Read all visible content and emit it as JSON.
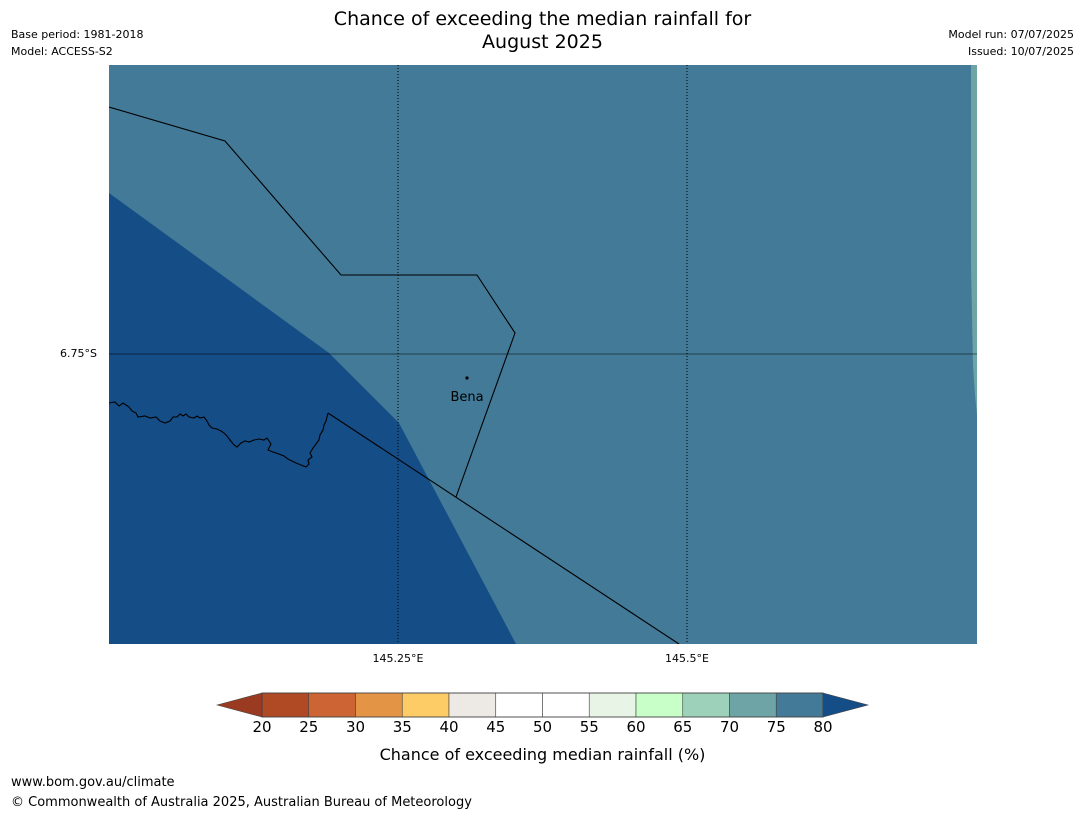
{
  "title": {
    "line1": "Chance of exceeding the median rainfall for",
    "line2": "August 2025"
  },
  "meta": {
    "base_period": "Base period: 1981-2018",
    "model": "Model: ACCESS-S2",
    "model_run": "Model run: 07/07/2025",
    "issued": "Issued: 10/07/2025"
  },
  "map": {
    "place_label": "Bena",
    "latitude_label": "6.75°S",
    "longitude_labels": [
      "145.25°E",
      "145.5°E"
    ],
    "colors": {
      "band_70_75": "#6ea4a6",
      "band_75_80": "#427a98",
      "band_80_plus": "#154d87"
    }
  },
  "colorbar": {
    "tick_labels": [
      "20",
      "25",
      "30",
      "35",
      "40",
      "45",
      "50",
      "55",
      "60",
      "65",
      "70",
      "75",
      "80"
    ],
    "under_color": "#9a3a20",
    "over_color": "#154d87",
    "bins": [
      {
        "range": "20-25",
        "color": "#b04a25"
      },
      {
        "range": "25-30",
        "color": "#cc6533"
      },
      {
        "range": "30-35",
        "color": "#e39545"
      },
      {
        "range": "35-40",
        "color": "#fecc66"
      },
      {
        "range": "40-45",
        "color": "#ede9e4"
      },
      {
        "range": "45-50",
        "color": "#ffffff"
      },
      {
        "range": "50-55",
        "color": "#ffffff"
      },
      {
        "range": "55-60",
        "color": "#e8f5e6"
      },
      {
        "range": "60-65",
        "color": "#c8ffc8"
      },
      {
        "range": "65-70",
        "color": "#9dd1b9"
      },
      {
        "range": "70-75",
        "color": "#6ea4a6"
      },
      {
        "range": "75-80",
        "color": "#427a98"
      }
    ],
    "label": "Chance of exceeding median rainfall (%)"
  },
  "footer": {
    "url": "www.bom.gov.au/climate",
    "copyright": "© Commonwealth of Australia 2025, Australian Bureau of Meteorology"
  }
}
